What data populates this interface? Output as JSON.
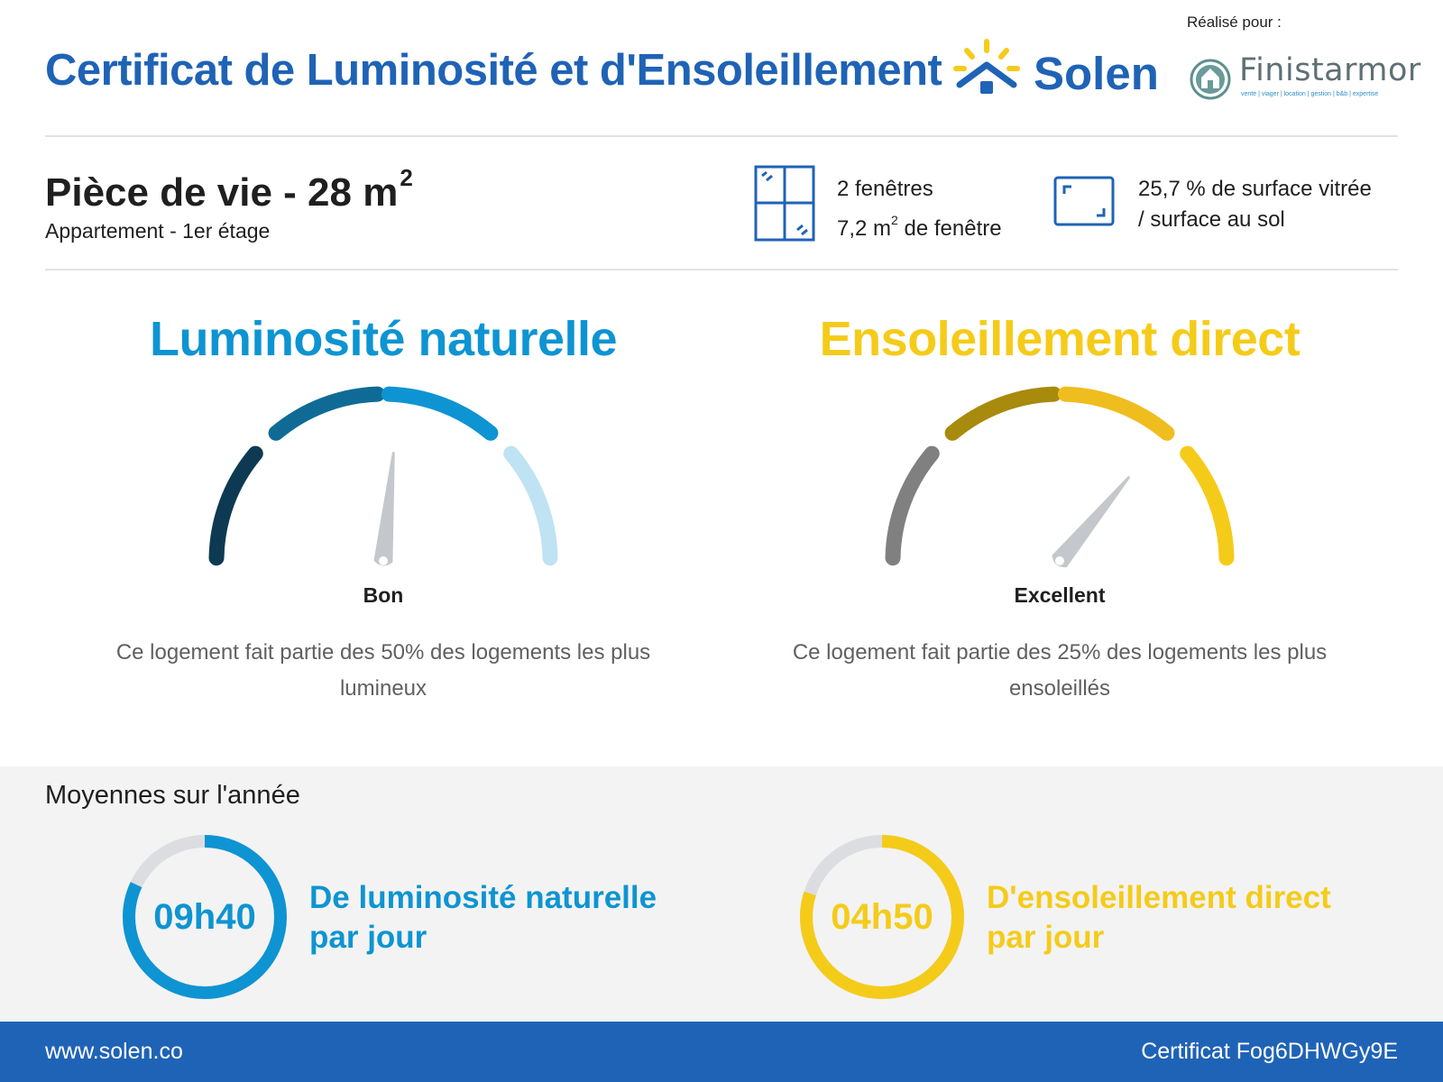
{
  "header": {
    "title": "Certificat de Luminosité et d'Ensoleillement",
    "brand": "Solen",
    "made_for_label": "Réalisé pour :",
    "client_name": "Finistarmor",
    "client_tagline": "vente | viager | location | gestion | b&b | expertise",
    "brand_color": "#1f63b6",
    "sun_color": "#f5cb1a"
  },
  "room": {
    "title": "Pièce de vie - 28 m",
    "title_sup": "2",
    "subtitle": "Appartement - 1er étage",
    "windows_count": "2 fenêtres",
    "window_area": "7,2 m",
    "window_area_sup": "2",
    "window_area_suffix": " de fenêtre",
    "glazing_line1": "25,7 % de surface vitrée",
    "glazing_line2": "/ surface au sol"
  },
  "luminosity": {
    "title": "Luminosité naturelle",
    "rating": "Bon",
    "description": "Ce logement fait partie des 50% des logements les plus lumineux",
    "level": 0.53,
    "color": "#0e94d2",
    "segments": [
      "#0d3a52",
      "#0f6b96",
      "#0e94d2",
      "#bfe3f3"
    ]
  },
  "sunshine": {
    "title": "Ensoleillement direct",
    "rating": "Excellent",
    "description": "Ce logement fait partie des 25% des logements les plus ensoleillés",
    "level": 0.72,
    "color": "#f5cb1a",
    "segments": [
      "#808080",
      "#a88a0c",
      "#f0bd1e",
      "#f5cb1a"
    ]
  },
  "annual": {
    "title": "Moyennes sur l'année",
    "luminosity": {
      "value": "09h40",
      "caption_line1": "De luminosité naturelle",
      "caption_line2": "par jour",
      "fraction": 0.82
    },
    "sunshine": {
      "value": "04h50",
      "caption_line1": "D'ensoleillement direct",
      "caption_line2": "par jour",
      "fraction": 0.8
    }
  },
  "footer": {
    "website": "www.solen.co",
    "certificate": "Certificat Fog6DHWGy9E"
  }
}
